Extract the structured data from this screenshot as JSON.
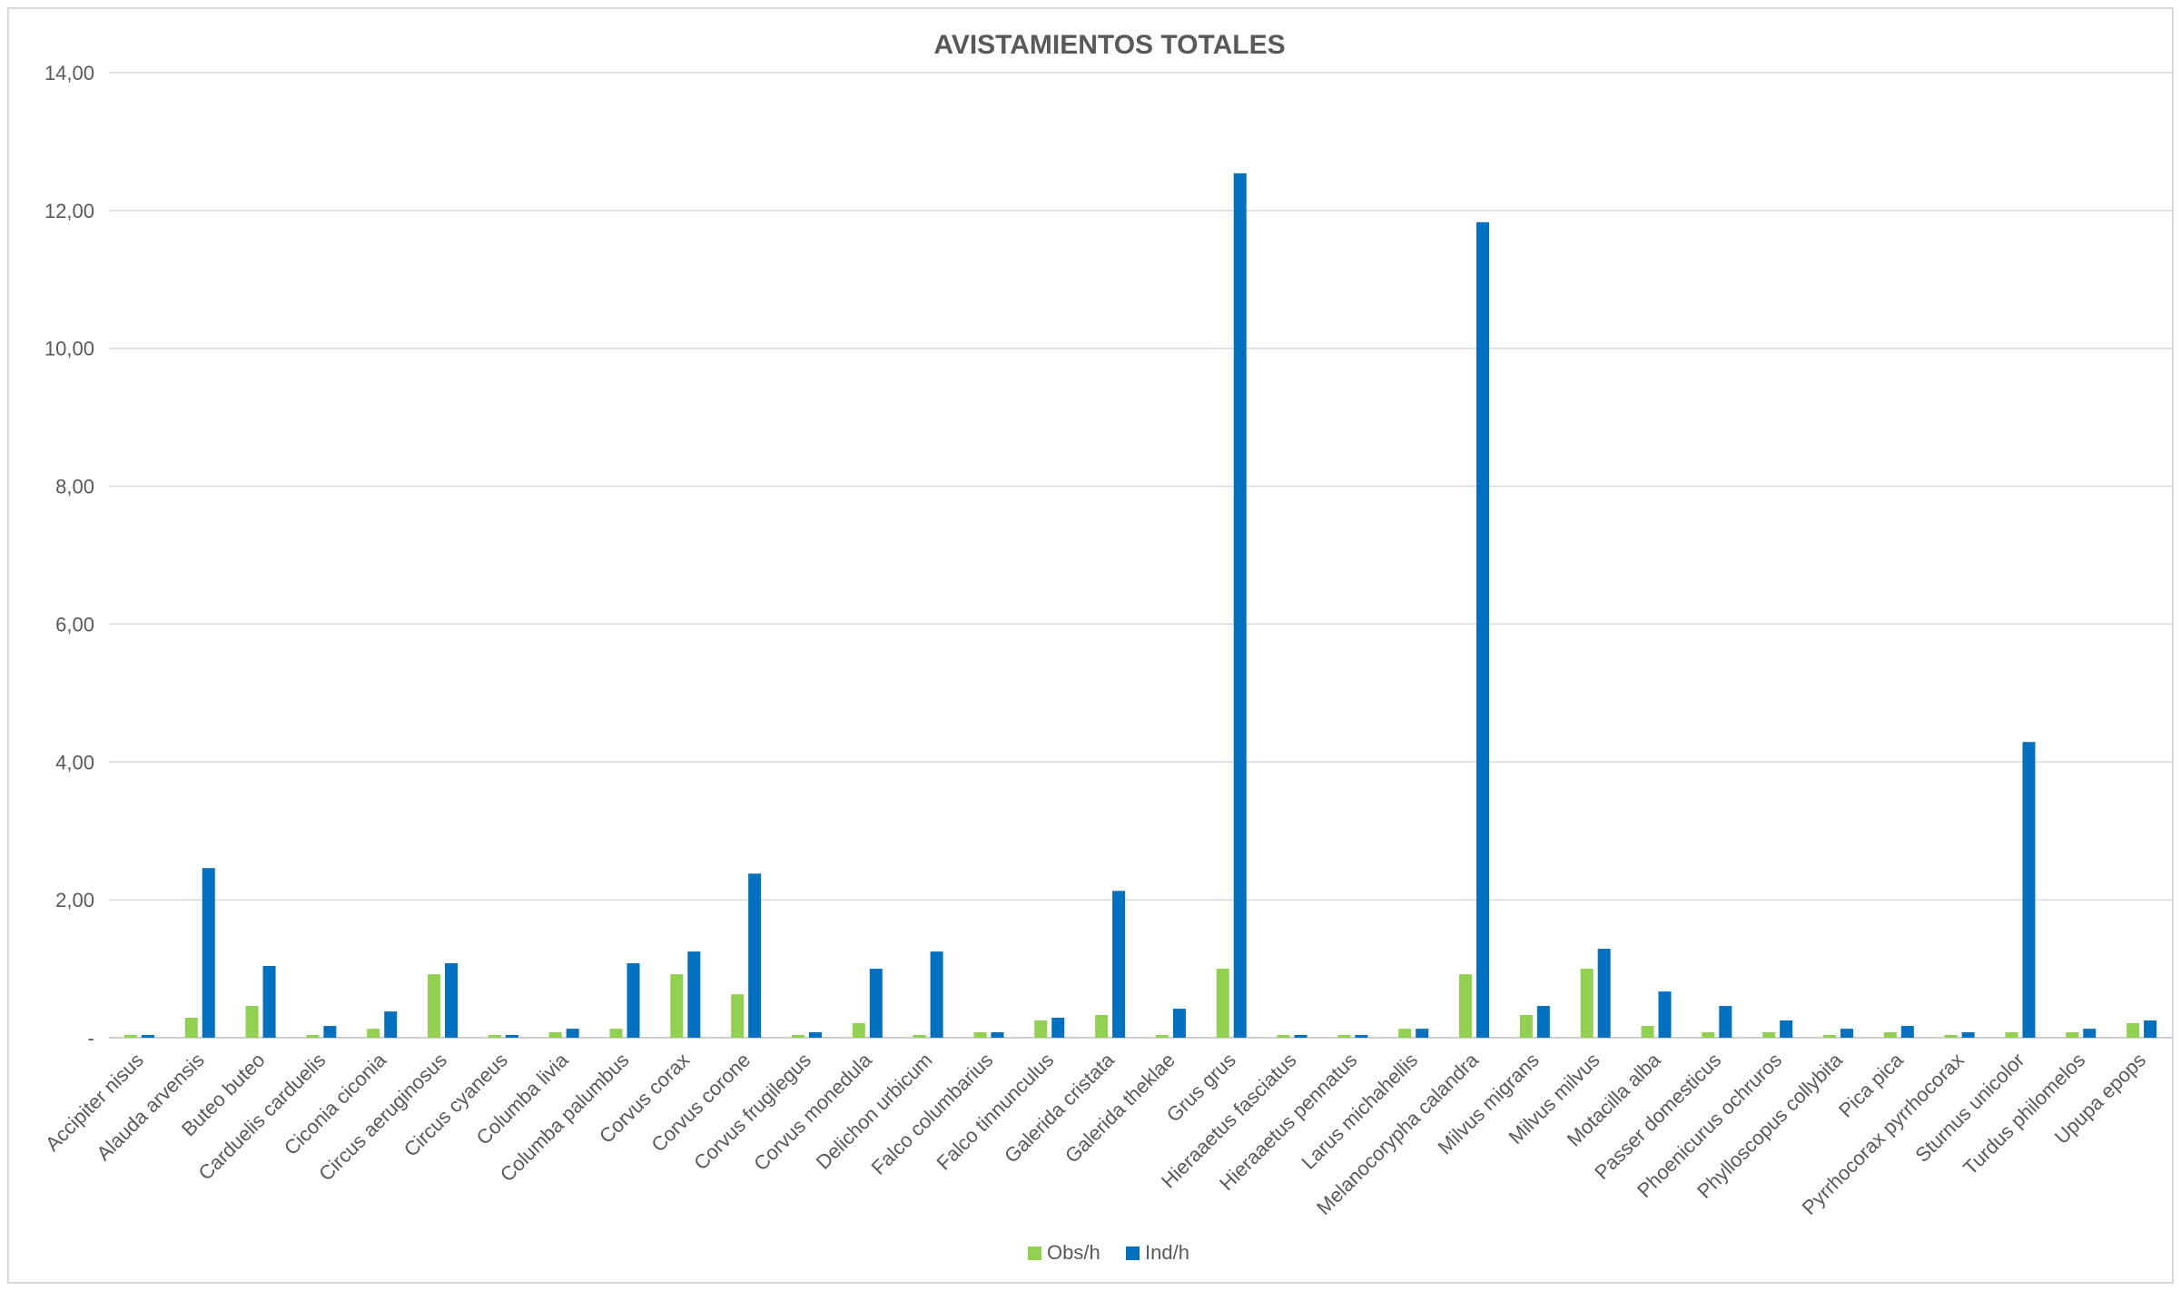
{
  "chart_data": {
    "type": "bar",
    "title": "AVISTAMIENTOS TOTALES",
    "xlabel": "",
    "ylabel": "",
    "ylim": [
      0,
      14
    ],
    "y_ticks": [
      0,
      2,
      4,
      6,
      8,
      10,
      12,
      14
    ],
    "y_tick_labels": [
      "-",
      "2,00",
      "4,00",
      "6,00",
      "8,00",
      "10,00",
      "12,00",
      "14,00"
    ],
    "grid": true,
    "legend_position": "bottom",
    "categories": [
      "Accipiter nisus",
      "Alauda arvensis",
      "Buteo buteo",
      "Carduelis carduelis",
      "Ciconia ciconia",
      "Circus aeruginosus",
      "Circus cyaneus",
      "Columba livia",
      "Columba palumbus",
      "Corvus corax",
      "Corvus corone",
      "Corvus frugilegus",
      "Corvus monedula",
      "Delichon urbicum",
      "Falco columbarius",
      "Falco tinnunculus",
      "Galerida cristata",
      "Galerida theklae",
      "Grus grus",
      "Hieraaetus fasciatus",
      "Hieraaetus pennatus",
      "Larus michahellis",
      "Melanocorypha calandra",
      "Milvus migrans",
      "Milvus milvus",
      "Motacilla alba",
      "Passer domesticus",
      "Phoenicurus ochruros",
      "Phylloscopus collybita",
      "Pica pica",
      "Pyrrhocorax pyrrhocorax",
      "Sturnus unicolor",
      "Turdus philomelos",
      "Upupa epops"
    ],
    "series": [
      {
        "name": "Obs/h",
        "color": "#92d050",
        "values": [
          0.04,
          0.29,
          0.46,
          0.04,
          0.13,
          0.92,
          0.04,
          0.08,
          0.13,
          0.92,
          0.63,
          0.04,
          0.21,
          0.04,
          0.08,
          0.25,
          0.33,
          0.04,
          1.0,
          0.04,
          0.04,
          0.13,
          0.92,
          0.33,
          1.0,
          0.17,
          0.08,
          0.08,
          0.04,
          0.08,
          0.04,
          0.08,
          0.08,
          0.21
        ]
      },
      {
        "name": "Ind/h",
        "color": "#0070c0",
        "values": [
          0.04,
          2.46,
          1.04,
          0.17,
          0.38,
          1.08,
          0.04,
          0.13,
          1.08,
          1.25,
          2.38,
          0.08,
          1.0,
          1.25,
          0.08,
          0.29,
          2.13,
          0.42,
          12.54,
          0.04,
          0.04,
          0.13,
          11.83,
          0.46,
          1.29,
          0.67,
          0.46,
          0.25,
          0.13,
          0.17,
          0.08,
          4.29,
          0.13,
          0.25
        ]
      }
    ]
  }
}
